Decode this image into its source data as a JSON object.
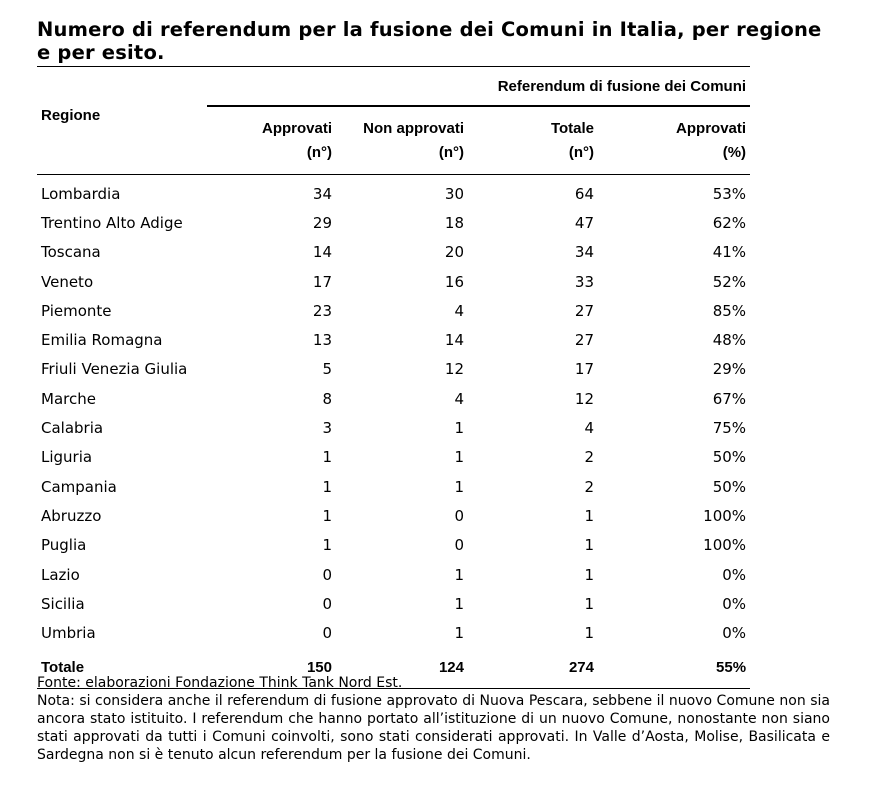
{
  "title": "Numero di referendum per la fusione dei Comuni in Italia, per regione e per esito.",
  "table": {
    "group_header": "Referendum di fusione dei Comuni",
    "region_header": "Regione",
    "columns": [
      {
        "label": "Approvati",
        "unit": "(n°)"
      },
      {
        "label": "Non approvati",
        "unit": "(n°)"
      },
      {
        "label": "Totale",
        "unit": "(n°)"
      },
      {
        "label": "Approvati",
        "unit": "(%)"
      }
    ],
    "rows": [
      [
        "Lombardia",
        "34",
        "30",
        "64",
        "53%"
      ],
      [
        "Trentino Alto Adige",
        "29",
        "18",
        "47",
        "62%"
      ],
      [
        "Toscana",
        "14",
        "20",
        "34",
        "41%"
      ],
      [
        "Veneto",
        "17",
        "16",
        "33",
        "52%"
      ],
      [
        "Piemonte",
        "23",
        "4",
        "27",
        "85%"
      ],
      [
        "Emilia Romagna",
        "13",
        "14",
        "27",
        "48%"
      ],
      [
        "Friuli Venezia Giulia",
        "5",
        "12",
        "17",
        "29%"
      ],
      [
        "Marche",
        "8",
        "4",
        "12",
        "67%"
      ],
      [
        "Calabria",
        "3",
        "1",
        "4",
        "75%"
      ],
      [
        "Liguria",
        "1",
        "1",
        "2",
        "50%"
      ],
      [
        "Campania",
        "1",
        "1",
        "2",
        "50%"
      ],
      [
        "Abruzzo",
        "1",
        "0",
        "1",
        "100%"
      ],
      [
        "Puglia",
        "1",
        "0",
        "1",
        "100%"
      ],
      [
        "Lazio",
        "0",
        "1",
        "1",
        "0%"
      ],
      [
        "Sicilia",
        "0",
        "1",
        "1",
        "0%"
      ],
      [
        "Umbria",
        "0",
        "1",
        "1",
        "0%"
      ]
    ],
    "total": [
      "Totale",
      "150",
      "124",
      "274",
      "55%"
    ]
  },
  "source": "Fonte: elaborazioni Fondazione Think Tank Nord Est.",
  "note": "Nota: si considera anche il referendum di fusione approvato di Nuova Pescara, sebbene il nuovo Comune non sia ancora stato istituito. I referendum che hanno portato all’istituzione di un nuovo Comune, nonostante non siano stati approvati da tutti i Comuni coinvolti, sono stati considerati approvati. In Valle d’Aosta, Molise, Basilicata e Sardegna non si è tenuto alcun referendum per la fusione dei Comuni."
}
